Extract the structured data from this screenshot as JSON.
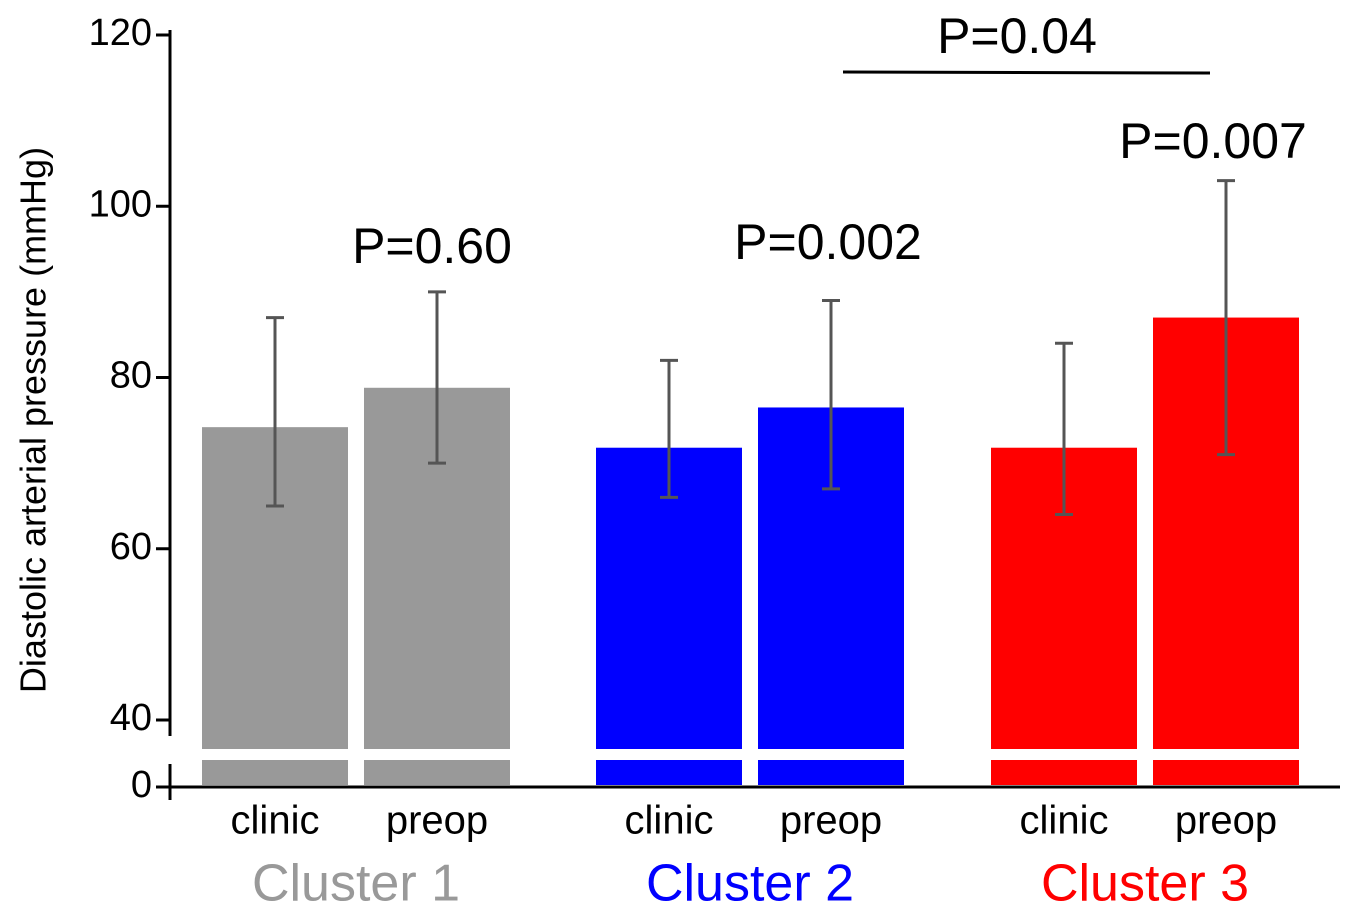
{
  "chart_data": {
    "type": "bar",
    "y_label": "Diastolic arterial pressure (mmHg)",
    "categories": [
      "clinic",
      "preop"
    ],
    "series": [
      {
        "name": "Cluster 1",
        "color": "#999999",
        "values": [
          74.2,
          78.8
        ],
        "error_low": [
          65,
          70
        ],
        "error_high": [
          87,
          90
        ]
      },
      {
        "name": "Cluster 2",
        "color": "#0000ff",
        "values": [
          71.8,
          76.5
        ],
        "error_low": [
          66,
          67
        ],
        "error_high": [
          82,
          89
        ]
      },
      {
        "name": "Cluster 3",
        "color": "#ff0000",
        "values": [
          71.8,
          87
        ],
        "error_low": [
          64,
          71
        ],
        "error_high": [
          84,
          103
        ]
      }
    ],
    "ylim": [
      0,
      120
    ],
    "yticks": [
      0,
      40,
      60,
      80,
      100,
      120
    ],
    "axis_break": [
      0,
      40
    ],
    "annotations": [
      "P=0.60",
      "P=0.002",
      "P=0.007",
      "P=0.04"
    ],
    "error_color": "#555555"
  }
}
